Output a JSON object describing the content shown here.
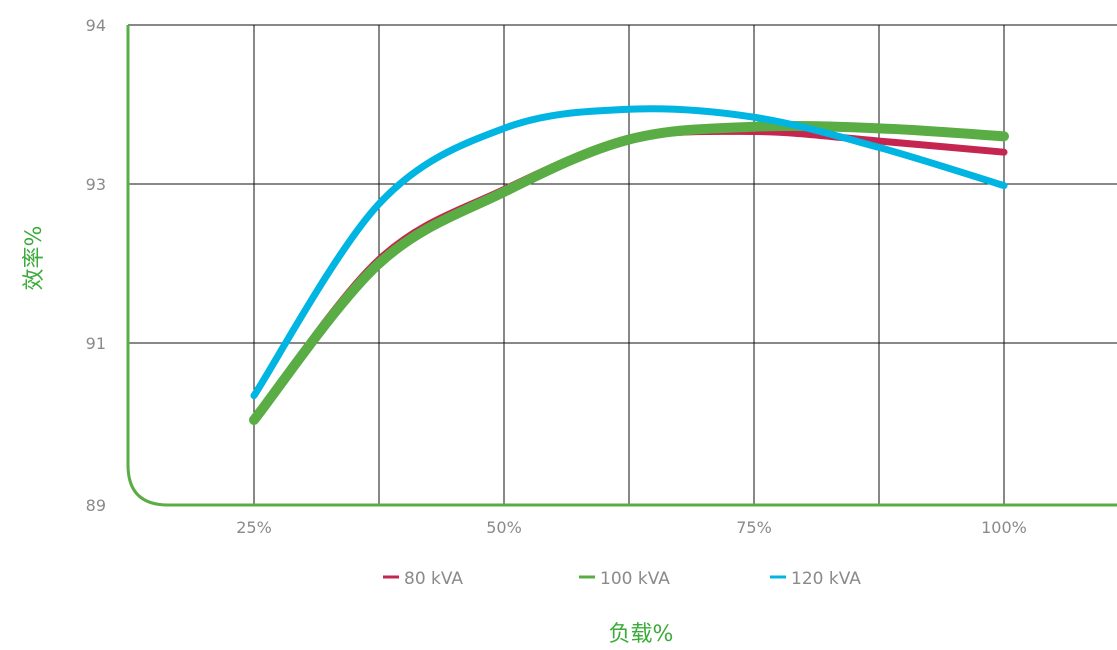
{
  "chart_data": {
    "type": "line",
    "title": "",
    "xlabel": "负载%",
    "ylabel": "效率%",
    "x_ticks": [
      "25%",
      "50%",
      "75%",
      "100%"
    ],
    "y_ticks": [
      "94",
      "93",
      "91",
      "89"
    ],
    "y_tick_values": [
      94,
      93,
      91,
      89
    ],
    "ylim": [
      89,
      94
    ],
    "grid": true,
    "legend_position": "bottom",
    "colors": {
      "axis": "#5aac44",
      "grid": "#111111",
      "tick_text": "#8a8a8a",
      "axis_title": "#3dab3b"
    },
    "x": [
      25,
      37.5,
      50,
      62.5,
      75,
      87.5,
      100
    ],
    "series": [
      {
        "name": "80 kVA",
        "color": "#c4264f",
        "values": [
          90.05,
          92.05,
          92.93,
          93.28,
          93.33,
          93.27,
          93.2
        ]
      },
      {
        "name": "100 kVA",
        "color": "#5aac44",
        "values": [
          90.05,
          92.0,
          92.9,
          93.28,
          93.36,
          93.35,
          93.3
        ]
      },
      {
        "name": "120 kVA",
        "color": "#00b5e2",
        "values": [
          90.35,
          92.75,
          93.35,
          93.47,
          93.42,
          93.23,
          92.98
        ]
      }
    ]
  }
}
